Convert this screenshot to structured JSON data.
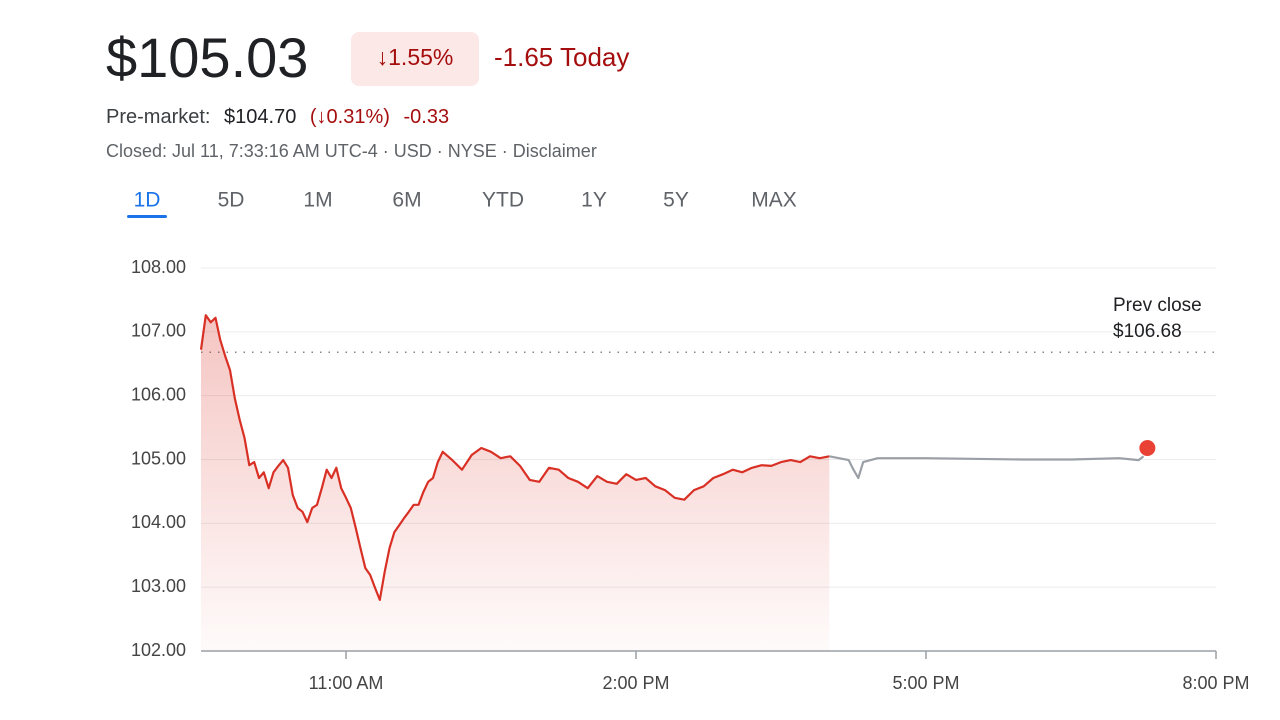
{
  "header": {
    "price": "$105.03",
    "change_percent": "↓1.55%",
    "change_today": "-1.65 Today",
    "premarket_label": "Pre-market:",
    "premarket_price": "$104.70",
    "premarket_percent": "(↓0.31%)",
    "premarket_change": "-0.33",
    "status": "Closed: Jul 11, 7:33:16 AM UTC-4 · USD · NYSE · Disclaimer"
  },
  "tabs": {
    "items": [
      "1D",
      "5D",
      "1M",
      "6M",
      "YTD",
      "1Y",
      "5Y",
      "MAX"
    ],
    "active": 0
  },
  "chart_data": {
    "type": "line",
    "xlim": [
      9.5,
      20
    ],
    "ylim": [
      102,
      108
    ],
    "xticks": [
      {
        "value": 11,
        "label": "11:00 AM"
      },
      {
        "value": 14,
        "label": "2:00 PM"
      },
      {
        "value": 17,
        "label": "5:00 PM"
      },
      {
        "value": 20,
        "label": "8:00 PM"
      }
    ],
    "yticks": [
      {
        "value": 102,
        "label": "102.00"
      },
      {
        "value": 103,
        "label": "103.00"
      },
      {
        "value": 104,
        "label": "104.00"
      },
      {
        "value": 105,
        "label": "105.00"
      },
      {
        "value": 106,
        "label": "106.00"
      },
      {
        "value": 107,
        "label": "107.00"
      },
      {
        "value": 108,
        "label": "108.00"
      }
    ],
    "grid": true,
    "series": [
      {
        "color": "#d93025",
        "area": true,
        "x": [
          9.5,
          9.55,
          9.6,
          9.65,
          9.7,
          9.75,
          9.8,
          9.85,
          9.9,
          9.95,
          10,
          10.05,
          10.1,
          10.15,
          10.2,
          10.25,
          10.3,
          10.35,
          10.4,
          10.45,
          10.5,
          10.55,
          10.6,
          10.65,
          10.7,
          10.75,
          10.8,
          10.85,
          10.9,
          10.95,
          11,
          11.05,
          11.1,
          11.15,
          11.2,
          11.25,
          11.3,
          11.35,
          11.4,
          11.45,
          11.5,
          11.55,
          11.6,
          11.65,
          11.7,
          11.75,
          11.8,
          11.85,
          11.9,
          11.95,
          12,
          12.1,
          12.2,
          12.3,
          12.4,
          12.5,
          12.6,
          12.7,
          12.8,
          12.9,
          13,
          13.1,
          13.2,
          13.3,
          13.4,
          13.5,
          13.6,
          13.7,
          13.8,
          13.9,
          14,
          14.1,
          14.2,
          14.3,
          14.4,
          14.5,
          14.6,
          14.7,
          14.8,
          14.9,
          15,
          15.1,
          15.2,
          15.3,
          15.4,
          15.5,
          15.6,
          15.7,
          15.8,
          15.9,
          16
        ],
        "values": [
          106.72,
          107.26,
          107.15,
          107.22,
          106.87,
          106.62,
          106.4,
          105.96,
          105.62,
          105.34,
          104.91,
          104.96,
          104.71,
          104.8,
          104.55,
          104.8,
          104.9,
          104.99,
          104.87,
          104.44,
          104.24,
          104.18,
          104.02,
          104.24,
          104.29,
          104.55,
          104.84,
          104.71,
          104.87,
          104.55,
          104.4,
          104.24,
          103.93,
          103.61,
          103.3,
          103.19,
          102.99,
          102.8,
          103.24,
          103.61,
          103.86,
          103.97,
          104.08,
          104.18,
          104.29,
          104.29,
          104.49,
          104.65,
          104.71,
          104.96,
          105.12,
          104.99,
          104.84,
          105.07,
          105.18,
          105.12,
          105.02,
          105.05,
          104.9,
          104.68,
          104.65,
          104.87,
          104.84,
          104.71,
          104.65,
          104.55,
          104.74,
          104.65,
          104.62,
          104.77,
          104.68,
          104.71,
          104.58,
          104.52,
          104.4,
          104.37,
          104.52,
          104.58,
          104.71,
          104.77,
          104.84,
          104.8,
          104.87,
          104.91,
          104.9,
          104.96,
          104.99,
          104.96,
          105.05,
          105.02,
          105.05
        ]
      },
      {
        "color": "#9aa0a6",
        "area": false,
        "x": [
          16,
          16.1,
          16.2,
          16.25,
          16.3,
          16.35,
          16.5,
          17,
          18,
          18.5,
          19,
          19.2,
          19.25
        ],
        "values": [
          105.05,
          105.02,
          104.99,
          104.84,
          104.71,
          104.96,
          105.02,
          105.02,
          105,
          105,
          105.02,
          104.99,
          105.05
        ]
      }
    ],
    "marker": {
      "x": 19.29,
      "value": 105.18,
      "color": "#e94235"
    },
    "prev_close": {
      "title": "Prev close",
      "value": 106.68,
      "label": "$106.68"
    }
  }
}
